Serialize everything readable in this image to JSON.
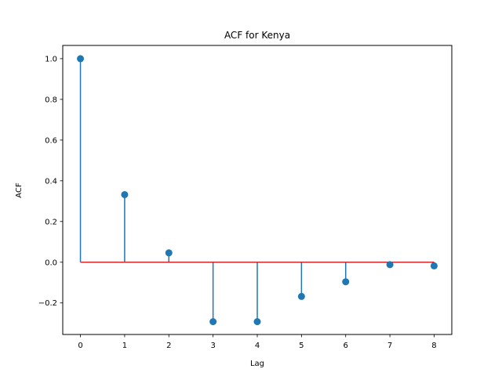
{
  "chart_data": {
    "type": "stem",
    "title": "ACF for Kenya",
    "xlabel": "Lag",
    "ylabel": "ACF",
    "x": [
      0,
      1,
      2,
      3,
      4,
      5,
      6,
      7,
      8
    ],
    "values": [
      1.0,
      0.332,
      0.046,
      -0.292,
      -0.292,
      -0.168,
      -0.096,
      -0.012,
      -0.018
    ],
    "xlim": [
      -0.4,
      8.4
    ],
    "ylim": [
      -0.355,
      1.065
    ],
    "xticks": [
      0,
      1,
      2,
      3,
      4,
      5,
      6,
      7,
      8
    ],
    "yticks": [
      -0.2,
      0.0,
      0.2,
      0.4,
      0.6,
      0.8,
      1.0
    ],
    "xtick_labels": [
      "0",
      "1",
      "2",
      "3",
      "4",
      "5",
      "6",
      "7",
      "8"
    ],
    "ytick_labels": [
      "−0.2",
      "0.0",
      "0.2",
      "0.4",
      "0.6",
      "0.8",
      "1.0"
    ],
    "baseline": 0,
    "grid": false,
    "legend": "none",
    "colors": {
      "stem": "#1f77b4",
      "marker": "#1f77b4",
      "baseline": "#d62728"
    }
  }
}
